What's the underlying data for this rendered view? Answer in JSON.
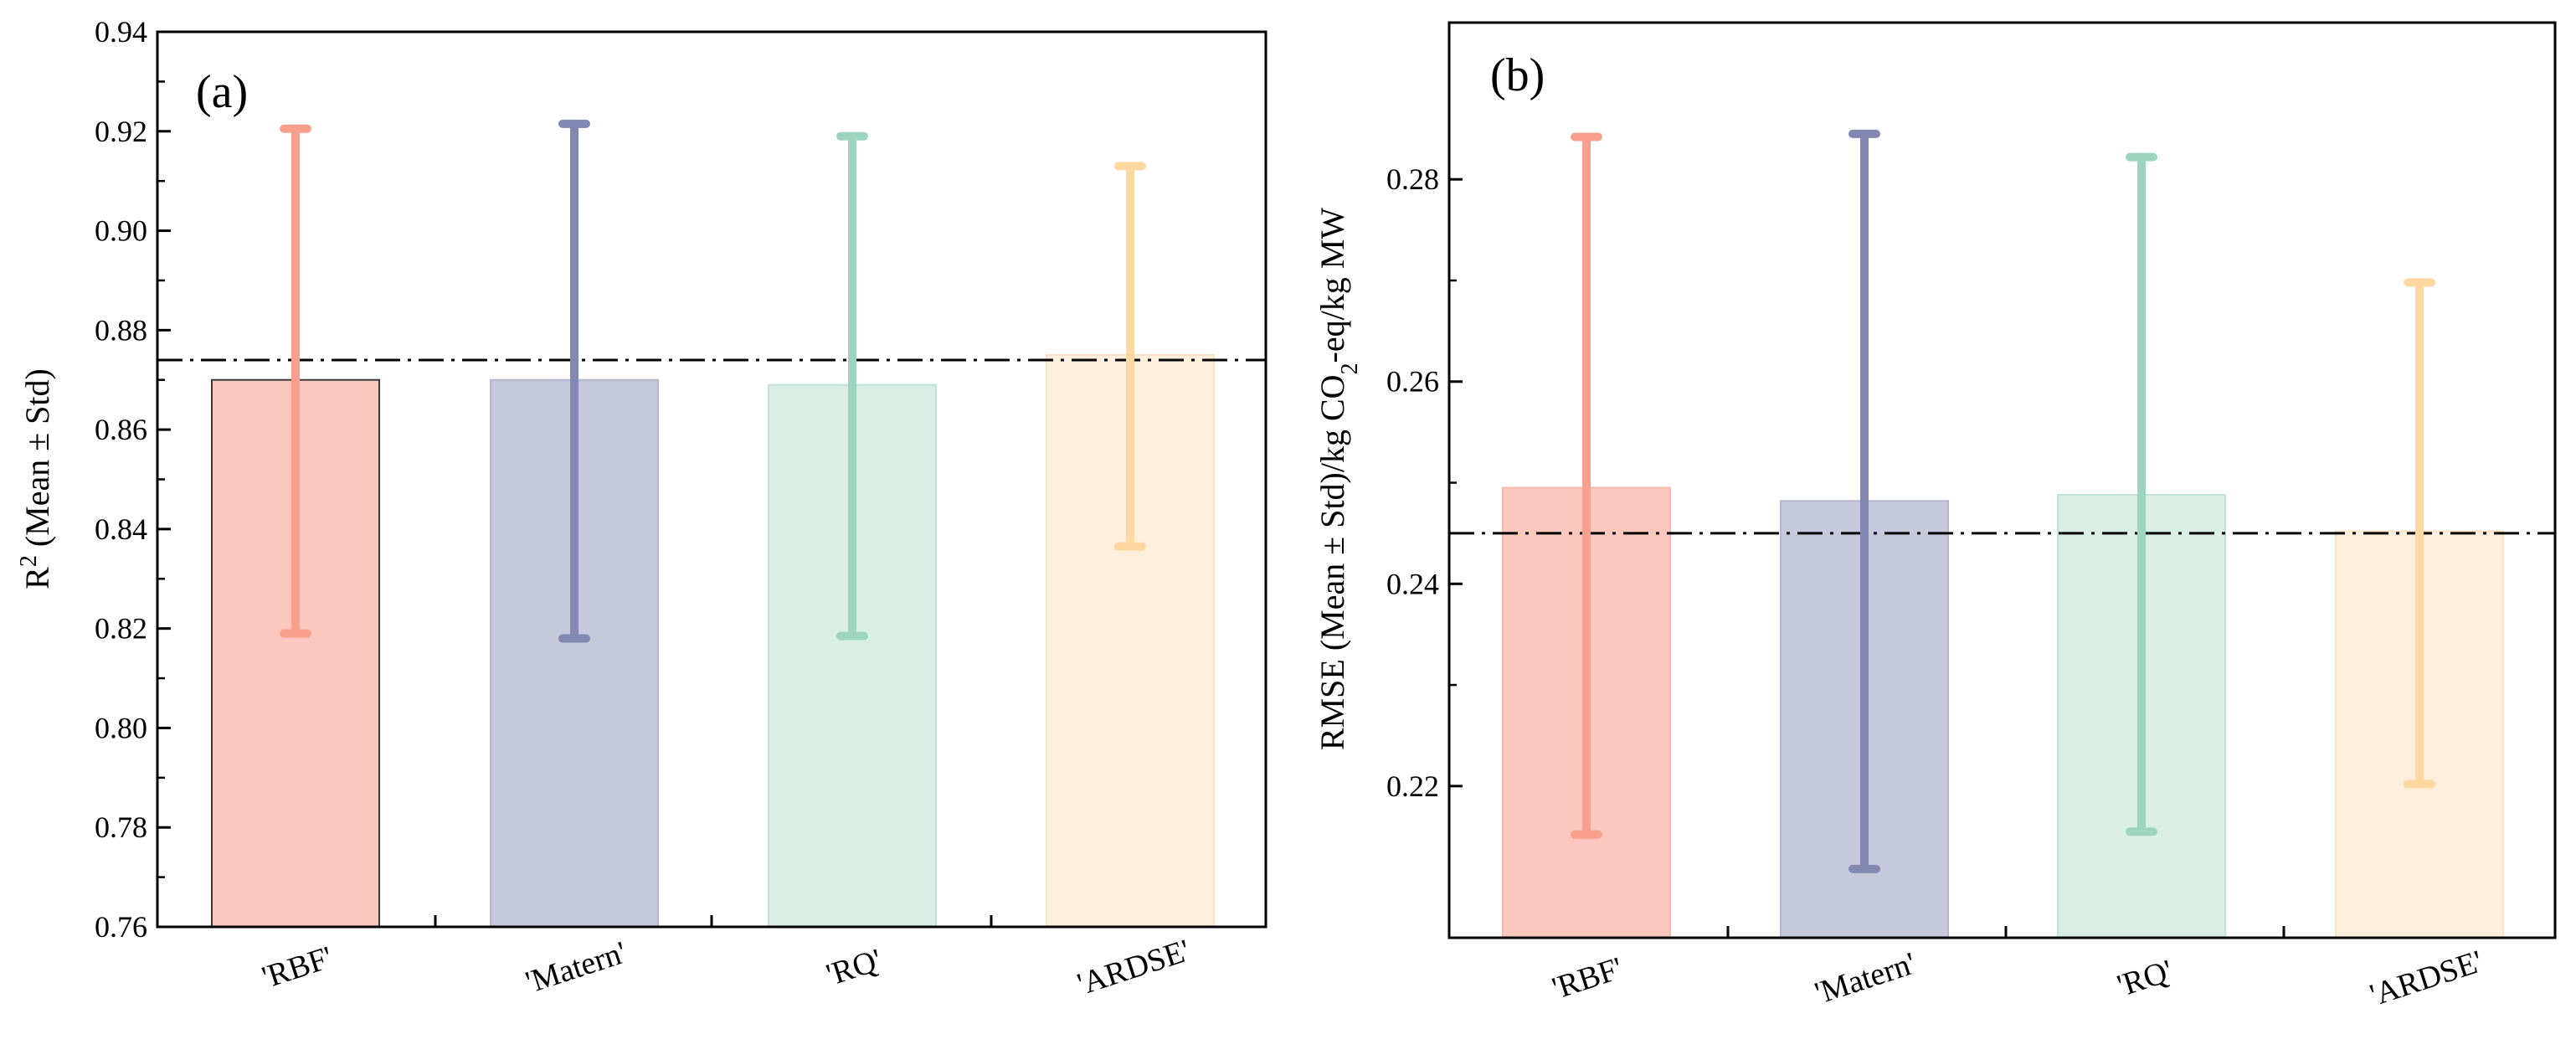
{
  "chart_data": [
    {
      "type": "bar",
      "panel_label": "(a)",
      "categories": [
        "'RBF'",
        "'Matern'",
        "'RQ'",
        "'ARDSE'"
      ],
      "values": [
        0.87,
        0.87,
        0.869,
        0.875
      ],
      "error_low": [
        0.819,
        0.818,
        0.8185,
        0.8365
      ],
      "error_high": [
        0.9205,
        0.9215,
        0.919,
        0.913
      ],
      "reference_line": 0.874,
      "ylabel_main": "R",
      "ylabel_sup": "2",
      "ylabel_rest": "  (Mean ± Std)",
      "ylim": [
        0.76,
        0.94
      ],
      "yticks": [
        0.76,
        0.78,
        0.8,
        0.82,
        0.84,
        0.86,
        0.88,
        0.9,
        0.92,
        0.94
      ],
      "ytick_labels": [
        "0.76",
        "0.78",
        "0.80",
        "0.82",
        "0.84",
        "0.86",
        "0.88",
        "0.90",
        "0.92",
        "0.94"
      ],
      "grid": false,
      "legend": "none",
      "bar_colors": [
        "#fcc8bd",
        "#c6c8dc",
        "#d9efe6",
        "#feefdc"
      ],
      "error_colors": [
        "#f99f8e",
        "#8388b2",
        "#9dd4be",
        "#fed8a0"
      ],
      "bar_edge_colors": [
        "#3a3a3a",
        "#b4b6cc",
        "#c0e3d6",
        "#f7e2c4"
      ]
    },
    {
      "type": "bar",
      "panel_label": "(b)",
      "categories": [
        "'RBF'",
        "'Matern'",
        "'RQ'",
        "'ARDSE'"
      ],
      "values": [
        0.2495,
        0.2482,
        0.2488,
        0.2452
      ],
      "error_low": [
        0.2152,
        0.2118,
        0.2155,
        0.2202
      ],
      "error_high": [
        0.2842,
        0.2845,
        0.2822,
        0.2698
      ],
      "reference_line": 0.245,
      "ylabel_pre": "RMSE (Mean ± Std)/kg CO",
      "ylabel_sub": "2",
      "ylabel_post": "-eq/kg MW",
      "ylim": [
        0.205,
        0.2955
      ],
      "yticks": [
        0.22,
        0.24,
        0.26,
        0.28
      ],
      "ytick_labels": [
        "0.22",
        "0.24",
        "0.26",
        "0.28"
      ],
      "grid": false,
      "legend": "none",
      "bar_colors": [
        "#fcc8bd",
        "#c6c8dc",
        "#d9efe6",
        "#feefdc"
      ],
      "error_colors": [
        "#f99f8e",
        "#8388b2",
        "#9dd4be",
        "#fed8a0"
      ],
      "bar_edge_colors": [
        "#f7b8aa",
        "#b4b6cc",
        "#c0e3d6",
        "#f7e2c4"
      ]
    }
  ]
}
